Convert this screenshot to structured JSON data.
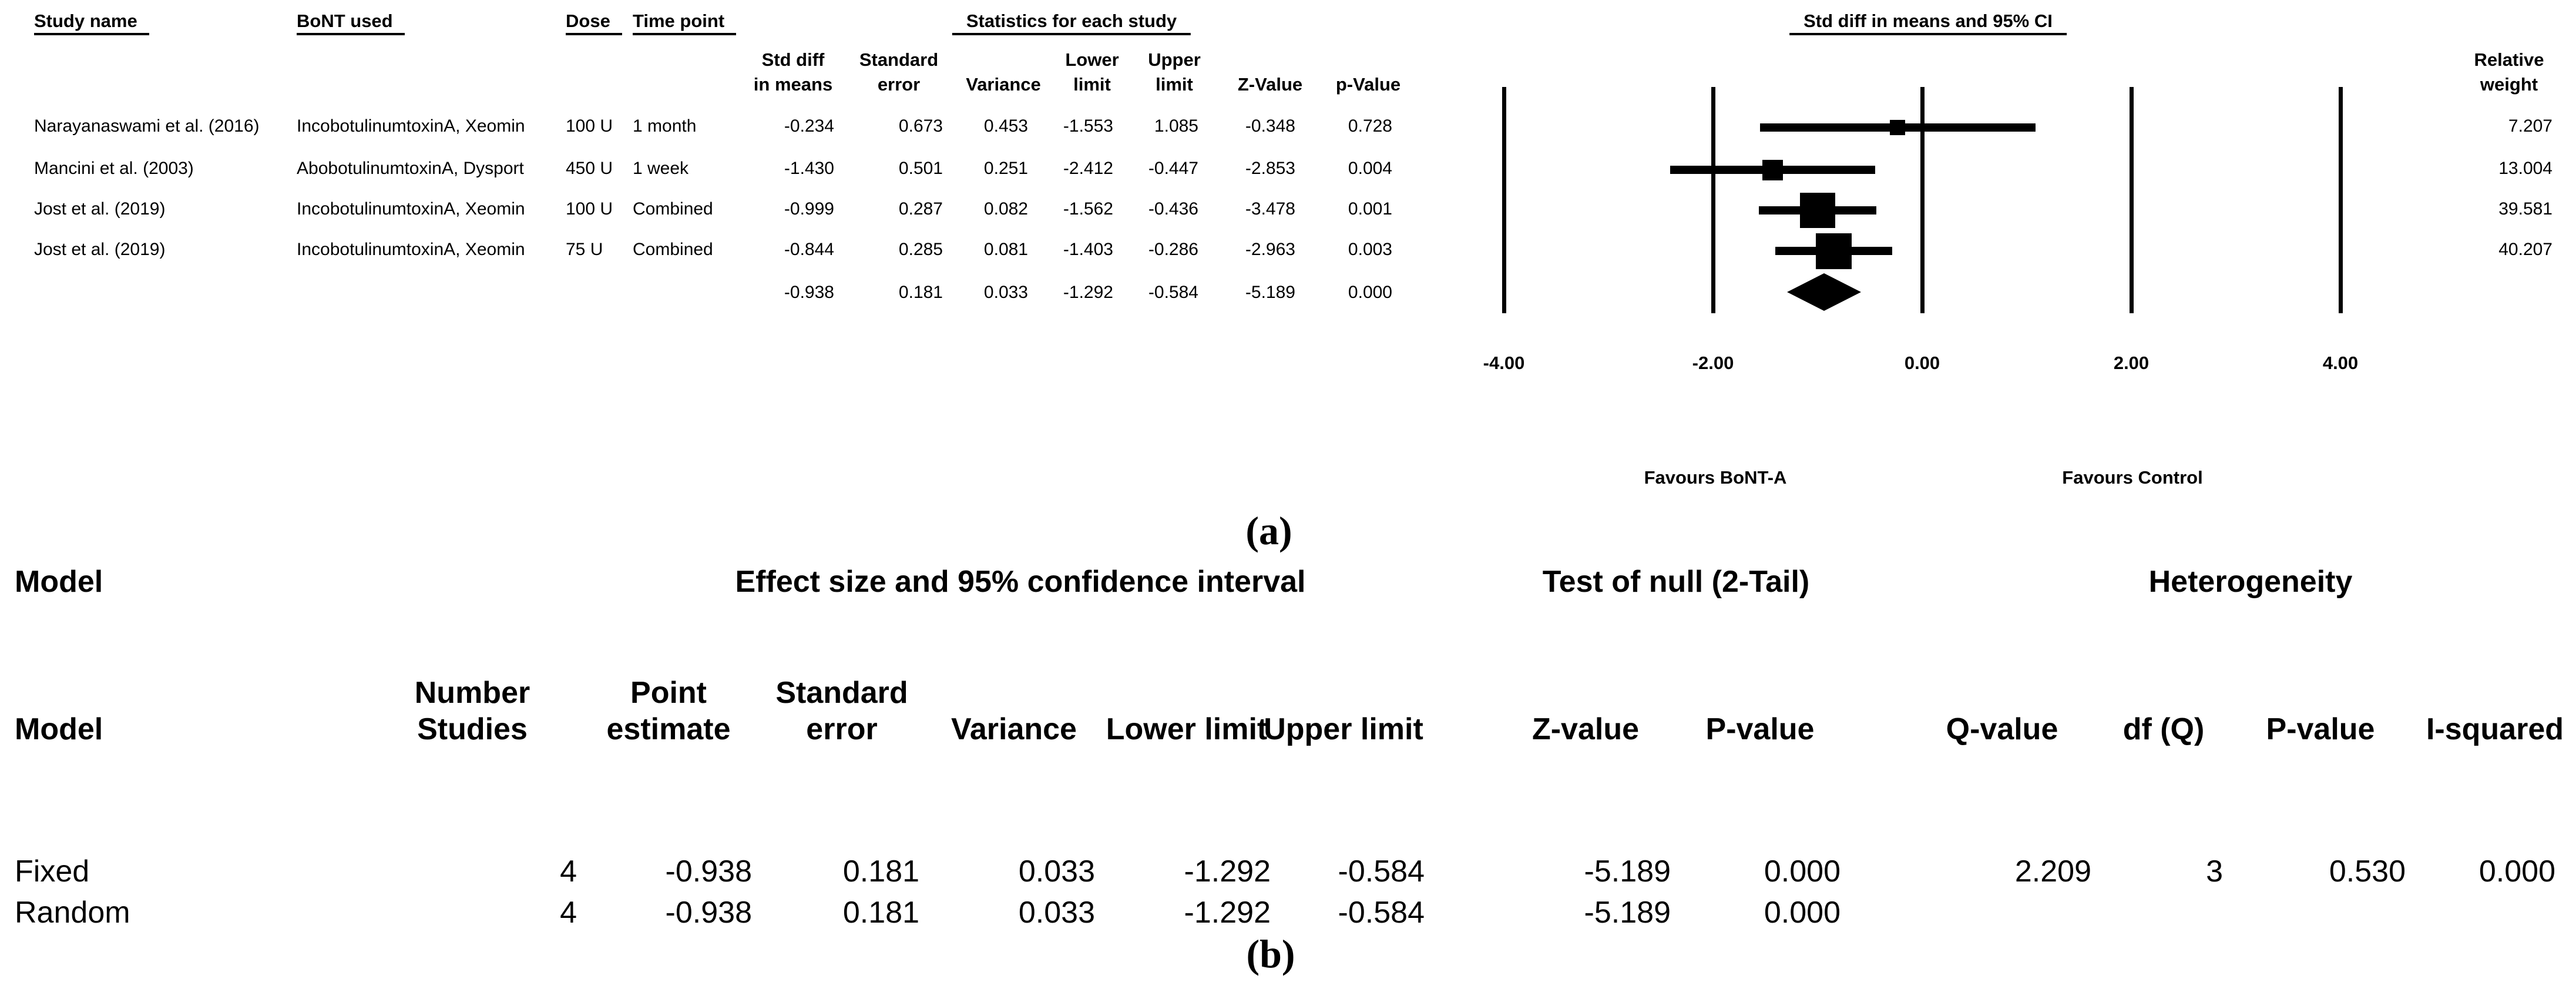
{
  "figure": {
    "background": "#ffffff",
    "ink_color": "#000000",
    "captions": {
      "a": "(a)",
      "b": "(b)"
    }
  },
  "panel_a": {
    "headers": {
      "study": "Study name",
      "bont": "BoNT used",
      "dose": "Dose",
      "time": "Time point",
      "stats_group": "Statistics for each study",
      "plot_group": "Std diff in means and 95% CI",
      "relative_weight": [
        "Relative",
        "weight"
      ]
    },
    "stat_col_headers": [
      [
        "Std diff",
        "in means"
      ],
      [
        "Standard",
        "error"
      ],
      [
        "",
        "Variance"
      ],
      [
        "Lower",
        "limit"
      ],
      [
        "Upper",
        "limit"
      ],
      [
        "",
        "Z-Value"
      ],
      [
        "",
        "p-Value"
      ]
    ],
    "rows": [
      {
        "study": "Narayanaswami et al. (2016)",
        "bont": "IncobotulinumtoxinA, Xeomin",
        "dose": "100 U",
        "time": "1 month",
        "stats": [
          "-0.234",
          "0.673",
          "0.453",
          "-1.553",
          "1.085",
          "-0.348",
          "0.728"
        ],
        "weight": "7.207"
      },
      {
        "study": "Mancini et al. (2003)",
        "bont": "AbobotulinumtoxinA, Dysport",
        "dose": "450 U",
        "time": "1 week",
        "stats": [
          "-1.430",
          "0.501",
          "0.251",
          "-2.412",
          "-0.447",
          "-2.853",
          "0.004"
        ],
        "weight": "13.004"
      },
      {
        "study": "Jost et al. (2019)",
        "bont": "IncobotulinumtoxinA, Xeomin",
        "dose": "100 U",
        "time": "Combined",
        "stats": [
          "-0.999",
          "0.287",
          "0.082",
          "-1.562",
          "-0.436",
          "-3.478",
          "0.001"
        ],
        "weight": "39.581"
      },
      {
        "study": "Jost et al. (2019)",
        "bont": "IncobotulinumtoxinA, Xeomin",
        "dose": "75 U",
        "time": "Combined",
        "stats": [
          "-0.844",
          "0.285",
          "0.081",
          "-1.403",
          "-0.286",
          "-2.963",
          "0.003"
        ],
        "weight": "40.207"
      }
    ],
    "summary_stats": [
      "-0.938",
      "0.181",
      "0.033",
      "-1.292",
      "-0.584",
      "-5.189",
      "0.000"
    ],
    "footer": {
      "left": "Favours BoNT-A",
      "right": "Favours Control"
    }
  },
  "chart_data": {
    "type": "forest",
    "title": "Std diff in means and 95% CI",
    "xlabel": "Std diff in means",
    "x_range": [
      -4.6,
      4.6
    ],
    "x_ticks": [
      {
        "value": -4,
        "label": "-4.00"
      },
      {
        "value": -2,
        "label": "-2.00"
      },
      {
        "value": 0,
        "label": "0.00"
      },
      {
        "value": 2,
        "label": "2.00"
      },
      {
        "value": 4,
        "label": "4.00"
      }
    ],
    "studies": [
      {
        "name": "Narayanaswami et al. (2016)",
        "point": -0.234,
        "lower": -1.553,
        "upper": 1.085,
        "weight": 7.207
      },
      {
        "name": "Mancini et al. (2003)",
        "point": -1.43,
        "lower": -2.412,
        "upper": -0.447,
        "weight": 13.004
      },
      {
        "name": "Jost et al. (2019) 100 U",
        "point": -0.999,
        "lower": -1.562,
        "upper": -0.436,
        "weight": 39.581
      },
      {
        "name": "Jost et al. (2019) 75 U",
        "point": -0.844,
        "lower": -1.403,
        "upper": -0.286,
        "weight": 40.207
      }
    ],
    "summary": {
      "point": -0.938,
      "lower": -1.292,
      "upper": -0.584
    },
    "direction_labels": {
      "left_of_null": "Favours BoNT-A",
      "right_of_null": "Favours Control"
    },
    "legend_position": "none",
    "grid": "vertical-lines-at-ticks"
  },
  "panel_b": {
    "group_headers": {
      "model": "Model",
      "effect": "Effect size and 95% confidence interval",
      "test": "Test of null (2-Tail)",
      "heterogeneity": "Heterogeneity"
    },
    "model_col_header": "Model",
    "col_headers": [
      [
        "Number",
        "Studies"
      ],
      [
        "Point",
        "estimate"
      ],
      [
        "Standard",
        "error"
      ],
      [
        "",
        "Variance"
      ],
      [
        "",
        "Lower limit"
      ],
      [
        "",
        "Upper limit"
      ],
      [
        "",
        "Z-value"
      ],
      [
        "",
        "P-value"
      ],
      [
        "",
        "Q-value"
      ],
      [
        "",
        "df (Q)"
      ],
      [
        "",
        "P-value"
      ],
      [
        "",
        "I-squared"
      ]
    ],
    "rows": [
      {
        "model": "Fixed",
        "values": [
          "4",
          "-0.938",
          "0.181",
          "0.033",
          "-1.292",
          "-0.584",
          "-5.189",
          "0.000",
          "2.209",
          "3",
          "0.530",
          "0.000"
        ]
      },
      {
        "model": "Random",
        "values": [
          "4",
          "-0.938",
          "0.181",
          "0.033",
          "-1.292",
          "-0.584",
          "-5.189",
          "0.000",
          "",
          "",
          "",
          ""
        ]
      }
    ]
  }
}
